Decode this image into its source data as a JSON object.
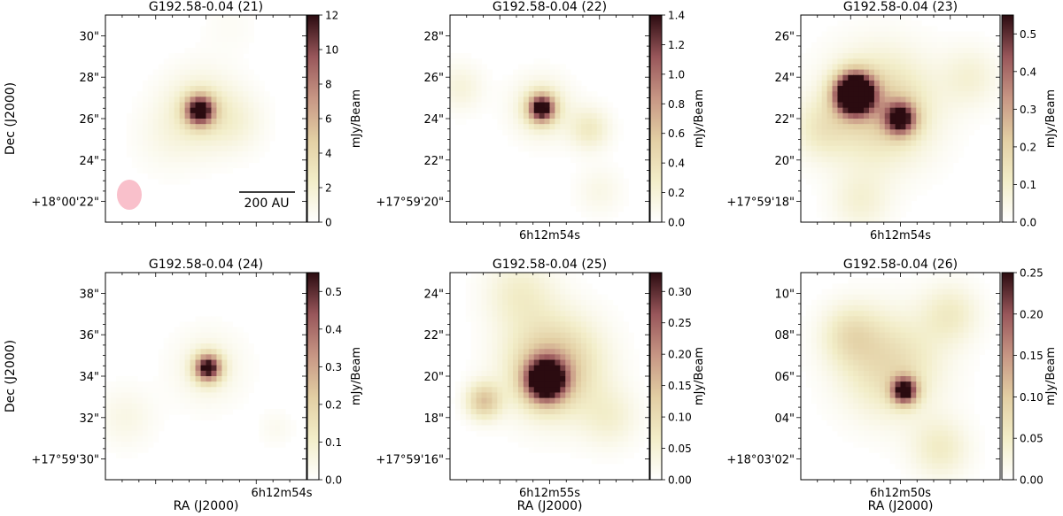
{
  "figure": {
    "x_axis_label": "RA (J2000)",
    "y_axis_label": "Dec (J2000)",
    "colorbar_label": "mJy/Beam",
    "beam_color": "#f9c0cb",
    "colormap": [
      "#ffffff",
      "#f2edc8",
      "#e2cea3",
      "#c79684",
      "#98565a",
      "#2b0b10"
    ]
  },
  "chart_data": [
    {
      "type": "heatmap",
      "title": "G192.58-0.04 (21)",
      "xlabel": "",
      "ylabel": "Dec (J2000)",
      "y_ticks": [
        "30\"",
        "28\"",
        "26\"",
        "24\"",
        "+18°00'22\""
      ],
      "x_ticks": [],
      "colorbar": {
        "label": "mJy/Beam",
        "ticks": [
          "0",
          "2",
          "4",
          "6",
          "8",
          "10",
          "12"
        ],
        "range": [
          0,
          12
        ]
      },
      "scalebar_label": "200 AU",
      "peak_flux": 12,
      "sources": [
        {
          "x": 0.47,
          "y": 0.46,
          "flux": 12,
          "sigma": 0.05
        },
        {
          "x": 0.47,
          "y": 0.46,
          "flux": 2.5,
          "sigma": 0.13
        },
        {
          "x": 0.65,
          "y": 0.52,
          "flux": 1.2,
          "sigma": 0.1
        },
        {
          "x": 0.3,
          "y": 0.6,
          "flux": 0.7,
          "sigma": 0.12
        },
        {
          "x": 0.62,
          "y": 0.05,
          "flux": 0.4,
          "sigma": 0.1
        }
      ]
    },
    {
      "type": "heatmap",
      "title": "G192.58-0.04 (22)",
      "xlabel": "",
      "ylabel": "",
      "y_ticks": [
        "28\"",
        "26\"",
        "24\"",
        "22\"",
        "+17°59'20\""
      ],
      "x_ticks": [
        "6h12m54s"
      ],
      "colorbar": {
        "label": "mJy/Beam",
        "ticks": [
          "0.0",
          "0.2",
          "0.4",
          "0.6",
          "0.8",
          "1.0",
          "1.2",
          "1.4"
        ],
        "range": [
          0,
          1.4
        ]
      },
      "peak_flux": 1.4,
      "sources": [
        {
          "x": 0.46,
          "y": 0.45,
          "flux": 1.4,
          "sigma": 0.045
        },
        {
          "x": 0.46,
          "y": 0.45,
          "flux": 0.3,
          "sigma": 0.1
        },
        {
          "x": 0.7,
          "y": 0.55,
          "flux": 0.3,
          "sigma": 0.07
        },
        {
          "x": 0.05,
          "y": 0.35,
          "flux": 0.18,
          "sigma": 0.08
        },
        {
          "x": 0.75,
          "y": 0.85,
          "flux": 0.12,
          "sigma": 0.08
        }
      ]
    },
    {
      "type": "heatmap",
      "title": "G192.58-0.04 (23)",
      "xlabel": "",
      "ylabel": "",
      "y_ticks": [
        "26\"",
        "24\"",
        "22\"",
        "20\"",
        "+17°59'18\""
      ],
      "x_ticks": [
        "6h12m54s"
      ],
      "colorbar": {
        "label": "mJy/Beam",
        "ticks": [
          "0.0",
          "0.1",
          "0.2",
          "0.3",
          "0.4",
          "0.5"
        ],
        "range": [
          0,
          0.55
        ]
      },
      "peak_flux": 0.55,
      "sources": [
        {
          "x": 0.27,
          "y": 0.38,
          "flux": 0.95,
          "sigma": 0.065
        },
        {
          "x": 0.5,
          "y": 0.5,
          "flux": 0.5,
          "sigma": 0.055
        },
        {
          "x": 0.4,
          "y": 0.45,
          "flux": 0.22,
          "sigma": 0.18
        },
        {
          "x": 0.1,
          "y": 0.55,
          "flux": 0.1,
          "sigma": 0.1
        },
        {
          "x": 0.85,
          "y": 0.3,
          "flux": 0.08,
          "sigma": 0.1
        },
        {
          "x": 0.3,
          "y": 0.9,
          "flux": 0.08,
          "sigma": 0.1
        }
      ]
    },
    {
      "type": "heatmap",
      "title": "G192.58-0.04 (24)",
      "xlabel": "RA (J2000)",
      "ylabel": "Dec (J2000)",
      "y_ticks": [
        "38\"",
        "36\"",
        "34\"",
        "32\"",
        "+17°59'30\""
      ],
      "x_ticks": [
        "6h12m54s"
      ],
      "colorbar": {
        "label": "mJy/Beam",
        "ticks": [
          "0.0",
          "0.1",
          "0.2",
          "0.3",
          "0.4",
          "0.5"
        ],
        "range": [
          0,
          0.55
        ]
      },
      "peak_flux": 0.55,
      "sources": [
        {
          "x": 0.51,
          "y": 0.46,
          "flux": 0.55,
          "sigma": 0.045
        },
        {
          "x": 0.51,
          "y": 0.46,
          "flux": 0.07,
          "sigma": 0.12
        },
        {
          "x": 0.1,
          "y": 0.7,
          "flux": 0.05,
          "sigma": 0.1
        },
        {
          "x": 0.85,
          "y": 0.75,
          "flux": 0.03,
          "sigma": 0.06
        }
      ]
    },
    {
      "type": "heatmap",
      "title": "G192.58-0.04 (25)",
      "xlabel": "RA (J2000)",
      "ylabel": "",
      "y_ticks": [
        "24\"",
        "22\"",
        "20\"",
        "18\"",
        "+17°59'16\""
      ],
      "x_ticks": [
        "6h12m55s"
      ],
      "colorbar": {
        "label": "mJy/Beam",
        "ticks": [
          "0.00",
          "0.05",
          "0.10",
          "0.15",
          "0.20",
          "0.25",
          "0.30"
        ],
        "range": [
          0,
          0.33
        ]
      },
      "peak_flux": 0.33,
      "sources": [
        {
          "x": 0.48,
          "y": 0.52,
          "flux": 0.4,
          "sigma": 0.07
        },
        {
          "x": 0.52,
          "y": 0.45,
          "flux": 0.16,
          "sigma": 0.16
        },
        {
          "x": 0.17,
          "y": 0.62,
          "flux": 0.14,
          "sigma": 0.06
        },
        {
          "x": 0.35,
          "y": 0.1,
          "flux": 0.06,
          "sigma": 0.12
        },
        {
          "x": 0.8,
          "y": 0.7,
          "flux": 0.05,
          "sigma": 0.1
        }
      ]
    },
    {
      "type": "heatmap",
      "title": "G192.58-0.04 (26)",
      "xlabel": "RA (J2000)",
      "ylabel": "",
      "y_ticks": [
        "10\"",
        "08\"",
        "06\"",
        "04\"",
        "+18°03'02\""
      ],
      "x_ticks": [
        "6h12m50s"
      ],
      "colorbar": {
        "label": "mJy/Beam",
        "ticks": [
          "0.00",
          "0.05",
          "0.10",
          "0.15",
          "0.20",
          "0.25"
        ],
        "range": [
          0,
          0.25
        ]
      },
      "peak_flux": 0.25,
      "sources": [
        {
          "x": 0.52,
          "y": 0.57,
          "flux": 0.25,
          "sigma": 0.045
        },
        {
          "x": 0.45,
          "y": 0.45,
          "flux": 0.08,
          "sigma": 0.17
        },
        {
          "x": 0.25,
          "y": 0.3,
          "flux": 0.06,
          "sigma": 0.1
        },
        {
          "x": 0.75,
          "y": 0.2,
          "flux": 0.05,
          "sigma": 0.1
        },
        {
          "x": 0.7,
          "y": 0.85,
          "flux": 0.05,
          "sigma": 0.1
        }
      ]
    }
  ]
}
